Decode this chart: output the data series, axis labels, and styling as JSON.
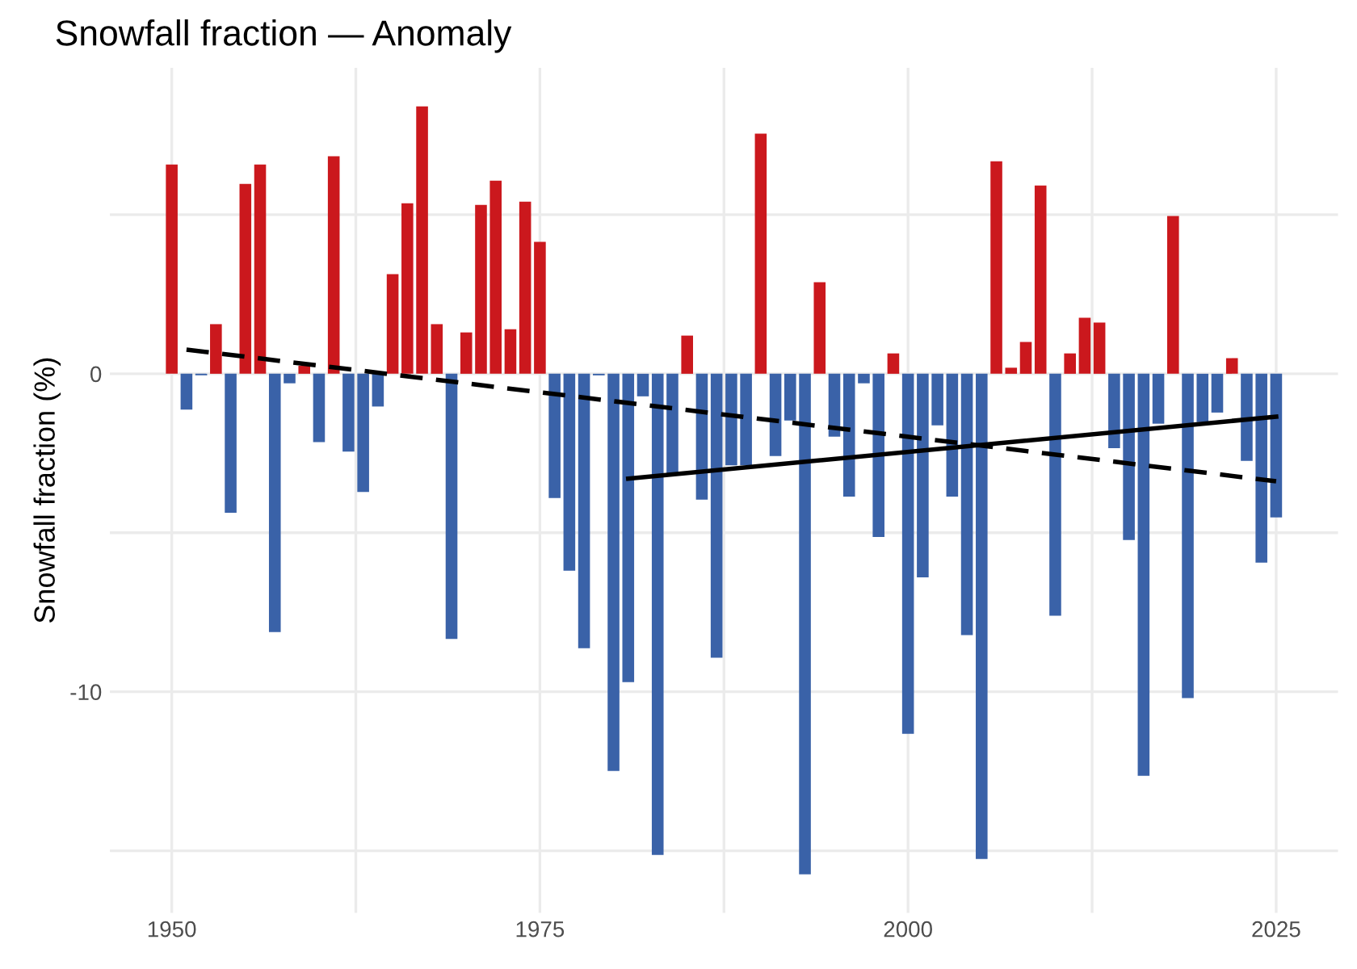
{
  "chart_data": {
    "type": "bar",
    "title": "Snowfall fraction — Anomaly",
    "ylabel": "Snowfall fraction (%)",
    "x": [
      1950,
      1951,
      1952,
      1953,
      1954,
      1955,
      1956,
      1957,
      1958,
      1959,
      1960,
      1961,
      1962,
      1963,
      1964,
      1965,
      1966,
      1967,
      1968,
      1969,
      1970,
      1971,
      1972,
      1973,
      1974,
      1975,
      1976,
      1977,
      1978,
      1979,
      1980,
      1981,
      1982,
      1983,
      1984,
      1985,
      1986,
      1987,
      1988,
      1989,
      1990,
      1991,
      1992,
      1993,
      1994,
      1995,
      1996,
      1997,
      1998,
      1999,
      2000,
      2001,
      2002,
      2003,
      2004,
      2005,
      2006,
      2007,
      2008,
      2009,
      2010,
      2011,
      2012,
      2013,
      2014,
      2015,
      2016,
      2017,
      2018,
      2019,
      2020,
      2021,
      2022,
      2023,
      2024,
      2025
    ],
    "values": [
      6.58,
      -1.13,
      -0.05,
      1.56,
      -4.37,
      5.97,
      6.58,
      -8.12,
      -0.3,
      0.25,
      -2.15,
      6.84,
      -2.45,
      -3.72,
      -1.03,
      3.13,
      5.36,
      8.41,
      1.56,
      -8.34,
      1.3,
      5.31,
      6.07,
      1.4,
      5.41,
      4.15,
      -3.91,
      -6.19,
      -8.63,
      -0.05,
      -12.49,
      -9.7,
      -0.71,
      -15.13,
      -3.13,
      1.2,
      -3.96,
      -8.93,
      -2.88,
      -2.88,
      7.55,
      -2.59,
      -1.47,
      -15.74,
      2.88,
      -1.98,
      -3.86,
      -0.3,
      -5.13,
      0.64,
      -11.32,
      -6.4,
      -1.62,
      -3.86,
      -8.22,
      -15.26,
      6.68,
      0.19,
      1.0,
      5.92,
      -7.61,
      0.64,
      1.76,
      1.61,
      -2.34,
      -5.23,
      -12.64,
      -1.57,
      4.96,
      -10.2,
      -1.52,
      -1.22,
      0.49,
      -2.74,
      -5.94,
      -4.52
    ],
    "colors": [
      "#cb181d",
      "#3a62a8",
      "#3a62a8",
      "#cb181d",
      "#3a62a8",
      "#cb181d",
      "#cb181d",
      "#3a62a8",
      "#3a62a8",
      "#cb181d",
      "#3a62a8",
      "#cb181d",
      "#3a62a8",
      "#3a62a8",
      "#3a62a8",
      "#cb181d",
      "#cb181d",
      "#cb181d",
      "#cb181d",
      "#3a62a8",
      "#cb181d",
      "#cb181d",
      "#cb181d",
      "#cb181d",
      "#cb181d",
      "#cb181d",
      "#3a62a8",
      "#3a62a8",
      "#3a62a8",
      "#3a62a8",
      "#3a62a8",
      "#3a62a8",
      "#3a62a8",
      "#3a62a8",
      "#3a62a8",
      "#cb181d",
      "#3a62a8",
      "#3a62a8",
      "#3a62a8",
      "#3a62a8",
      "#cb181d",
      "#3a62a8",
      "#3a62a8",
      "#3a62a8",
      "#cb181d",
      "#3a62a8",
      "#3a62a8",
      "#3a62a8",
      "#3a62a8",
      "#cb181d",
      "#3a62a8",
      "#3a62a8",
      "#3a62a8",
      "#3a62a8",
      "#3a62a8",
      "#3a62a8",
      "#cb181d",
      "#cb181d",
      "#cb181d",
      "#cb181d",
      "#3a62a8",
      "#cb181d",
      "#cb181d",
      "#cb181d",
      "#3a62a8",
      "#3a62a8",
      "#3a62a8",
      "#3a62a8",
      "#cb181d",
      "#3a62a8",
      "#3a62a8",
      "#3a62a8",
      "#cb181d",
      "#3a62a8",
      "#3a62a8",
      "#3a62a8"
    ],
    "series": [
      {
        "type": "line",
        "x": [
          1951,
          2025
        ],
        "values": [
          0.76,
          -3.38
        ],
        "color": "#000000",
        "line_style": "dashed"
      },
      {
        "type": "line",
        "x": [
          1981,
          2025
        ],
        "values": [
          -3.3,
          -1.35
        ],
        "color": "#000000",
        "line_style": "solid"
      }
    ],
    "xlim": [
      1945.8,
      2029.2
    ],
    "ylim": [
      -16.95,
      9.62
    ],
    "xticks": [
      1950,
      {
        "value": 1962.5,
        "label": null
      },
      1975,
      {
        "value": 1987.5,
        "label": null
      },
      2000,
      {
        "value": 2012.5,
        "label": null
      },
      2025
    ],
    "yticks": [
      {
        "value": -15,
        "label": null
      },
      -10,
      {
        "value": -5,
        "label": null
      },
      0,
      {
        "value": 5,
        "label": null
      }
    ],
    "grid": true
  }
}
